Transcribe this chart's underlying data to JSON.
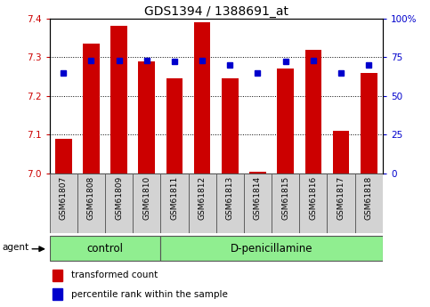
{
  "title": "GDS1394 / 1388691_at",
  "samples": [
    "GSM61807",
    "GSM61808",
    "GSM61809",
    "GSM61810",
    "GSM61811",
    "GSM61812",
    "GSM61813",
    "GSM61814",
    "GSM61815",
    "GSM61816",
    "GSM61817",
    "GSM61818"
  ],
  "bar_values": [
    7.09,
    7.335,
    7.38,
    7.29,
    7.245,
    7.39,
    7.245,
    7.005,
    7.27,
    7.32,
    7.11,
    7.26
  ],
  "percentile_values": [
    65,
    73,
    73,
    73,
    72,
    73,
    70,
    65,
    72,
    73,
    65,
    70
  ],
  "ymin": 7.0,
  "ymax": 7.4,
  "yticks": [
    7.0,
    7.1,
    7.2,
    7.3,
    7.4
  ],
  "right_yticks": [
    0,
    25,
    50,
    75,
    100
  ],
  "bar_color": "#cc0000",
  "percentile_color": "#0000cc",
  "control_indices": [
    0,
    1,
    2,
    3
  ],
  "treatment_indices": [
    4,
    5,
    6,
    7,
    8,
    9,
    10,
    11
  ],
  "control_label": "control",
  "treatment_label": "D-penicillamine",
  "agent_label": "agent",
  "legend_bar_label": "transformed count",
  "legend_pct_label": "percentile rank within the sample",
  "bg_color": "#ffffff",
  "plot_bg_color": "#ffffff",
  "grid_color": "#000000",
  "title_fontsize": 10,
  "tick_fontsize": 7.5,
  "sample_fontsize": 6.5,
  "group_fontsize": 8.5,
  "legend_fontsize": 7.5
}
